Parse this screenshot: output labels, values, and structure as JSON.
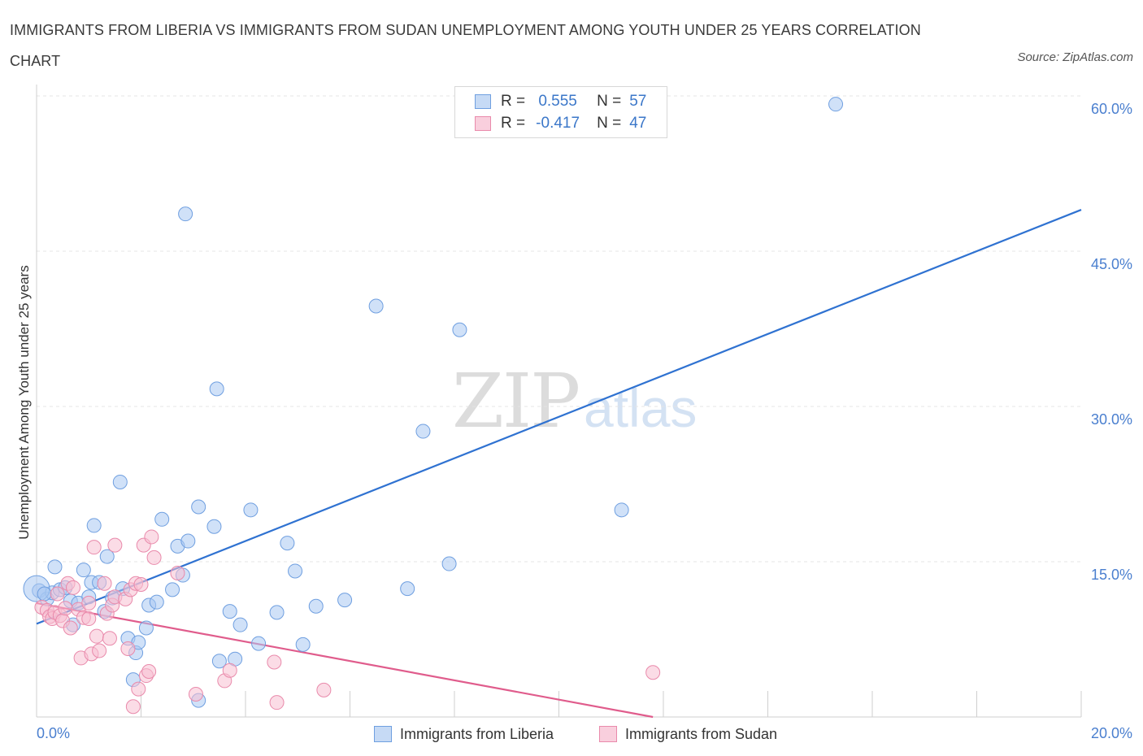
{
  "title": "IMMIGRANTS FROM LIBERIA VS IMMIGRANTS FROM SUDAN UNEMPLOYMENT AMONG YOUTH UNDER 25 YEARS CORRELATION CHART",
  "source": "Source: ZipAtlas.com",
  "watermark": {
    "zip": "ZIP",
    "atlas": "atlas"
  },
  "legend": {
    "r_label": "R =",
    "n_label": "N =",
    "series": [
      {
        "r": "0.555",
        "n": "57",
        "color": "#a9c8f2",
        "border": "#6f9fe0"
      },
      {
        "r": "-0.417",
        "n": "47",
        "color": "#f7bfd1",
        "border": "#e98aab"
      }
    ]
  },
  "bottom_legend": [
    "Immigrants from Liberia",
    "Immigrants from Sudan"
  ],
  "chart_data": {
    "type": "scatter",
    "title": "IMMIGRANTS FROM LIBERIA VS IMMIGRANTS FROM SUDAN UNEMPLOYMENT AMONG YOUTH UNDER 25 YEARS CORRELATION CHART",
    "xlabel": "",
    "ylabel": "Unemployment Among Youth under 25 years",
    "xlim": [
      0,
      20
    ],
    "ylim": [
      0,
      60
    ],
    "x_tick_labels": [
      {
        "x": 0,
        "label": "0.0%"
      },
      {
        "x": 20,
        "label": "20.0%"
      }
    ],
    "y_tick_labels": [
      {
        "y": 15,
        "label": "15.0%"
      },
      {
        "y": 30,
        "label": "30.0%"
      },
      {
        "y": 45,
        "label": "45.0%"
      },
      {
        "y": 60,
        "label": "60.0%"
      }
    ],
    "grid": true,
    "legend_position": "top-center",
    "series": [
      {
        "name": "Immigrants from Liberia",
        "color": "#a9c8f2",
        "stroke": "#6f9fe0",
        "trend_color": "#2f72d1",
        "trend": [
          [
            0,
            9.0
          ],
          [
            20,
            49.0
          ]
        ],
        "points": [
          [
            0.05,
            12.2
          ],
          [
            0.2,
            11.4
          ],
          [
            0.3,
            12.0
          ],
          [
            0.35,
            14.5
          ],
          [
            0.45,
            12.3
          ],
          [
            0.55,
            12.5
          ],
          [
            0.65,
            11.2
          ],
          [
            0.7,
            8.9
          ],
          [
            0.8,
            11.0
          ],
          [
            0.9,
            14.2
          ],
          [
            1.0,
            11.6
          ],
          [
            1.05,
            13.0
          ],
          [
            1.1,
            18.5
          ],
          [
            1.2,
            13.0
          ],
          [
            1.3,
            10.2
          ],
          [
            1.35,
            15.5
          ],
          [
            1.45,
            11.5
          ],
          [
            1.6,
            22.7
          ],
          [
            1.65,
            12.4
          ],
          [
            1.75,
            7.6
          ],
          [
            1.85,
            3.6
          ],
          [
            1.9,
            6.2
          ],
          [
            1.95,
            7.2
          ],
          [
            2.1,
            8.6
          ],
          [
            2.15,
            10.8
          ],
          [
            2.3,
            11.1
          ],
          [
            2.4,
            19.1
          ],
          [
            2.6,
            12.3
          ],
          [
            2.7,
            16.5
          ],
          [
            2.8,
            13.7
          ],
          [
            2.85,
            48.6
          ],
          [
            2.9,
            17.0
          ],
          [
            3.1,
            20.3
          ],
          [
            3.1,
            1.6
          ],
          [
            3.4,
            18.4
          ],
          [
            3.45,
            31.7
          ],
          [
            3.5,
            5.4
          ],
          [
            3.7,
            10.2
          ],
          [
            3.8,
            5.6
          ],
          [
            3.9,
            8.9
          ],
          [
            4.1,
            20.0
          ],
          [
            4.25,
            7.1
          ],
          [
            4.6,
            10.1
          ],
          [
            4.8,
            16.8
          ],
          [
            4.95,
            14.1
          ],
          [
            5.1,
            7.0
          ],
          [
            5.35,
            10.7
          ],
          [
            5.9,
            11.3
          ],
          [
            6.5,
            39.7
          ],
          [
            7.1,
            12.4
          ],
          [
            7.4,
            27.6
          ],
          [
            7.9,
            14.8
          ],
          [
            8.1,
            37.4
          ],
          [
            11.2,
            20.0
          ],
          [
            15.3,
            59.2
          ],
          [
            0.0,
            12.4
          ],
          [
            0.15,
            11.9
          ]
        ]
      },
      {
        "name": "Immigrants from Sudan",
        "color": "#f7bfd1",
        "stroke": "#e98aab",
        "trend_color": "#e05c8c",
        "trend": [
          [
            0,
            11.0
          ],
          [
            11.8,
            0.0
          ]
        ],
        "points": [
          [
            0.1,
            10.6
          ],
          [
            0.2,
            10.3
          ],
          [
            0.25,
            9.7
          ],
          [
            0.3,
            9.5
          ],
          [
            0.35,
            10.1
          ],
          [
            0.4,
            11.9
          ],
          [
            0.45,
            9.8
          ],
          [
            0.5,
            9.3
          ],
          [
            0.55,
            10.5
          ],
          [
            0.6,
            12.9
          ],
          [
            0.65,
            8.6
          ],
          [
            0.7,
            12.5
          ],
          [
            0.8,
            10.4
          ],
          [
            0.85,
            5.7
          ],
          [
            0.9,
            9.6
          ],
          [
            1.0,
            11.0
          ],
          [
            1.0,
            9.5
          ],
          [
            1.05,
            6.1
          ],
          [
            1.1,
            16.4
          ],
          [
            1.15,
            7.8
          ],
          [
            1.2,
            6.4
          ],
          [
            1.3,
            12.9
          ],
          [
            1.35,
            10.0
          ],
          [
            1.4,
            7.6
          ],
          [
            1.45,
            10.8
          ],
          [
            1.5,
            11.6
          ],
          [
            1.5,
            16.6
          ],
          [
            1.7,
            11.4
          ],
          [
            1.75,
            6.6
          ],
          [
            1.8,
            12.3
          ],
          [
            1.85,
            1.0
          ],
          [
            1.9,
            12.9
          ],
          [
            1.95,
            2.7
          ],
          [
            2.0,
            12.8
          ],
          [
            2.05,
            16.6
          ],
          [
            2.1,
            4.0
          ],
          [
            2.15,
            4.4
          ],
          [
            2.2,
            17.4
          ],
          [
            2.25,
            15.4
          ],
          [
            2.7,
            13.9
          ],
          [
            3.05,
            2.2
          ],
          [
            3.6,
            3.5
          ],
          [
            3.7,
            4.5
          ],
          [
            4.55,
            5.3
          ],
          [
            4.6,
            1.4
          ],
          [
            5.5,
            2.6
          ],
          [
            11.8,
            4.3
          ]
        ]
      }
    ]
  }
}
